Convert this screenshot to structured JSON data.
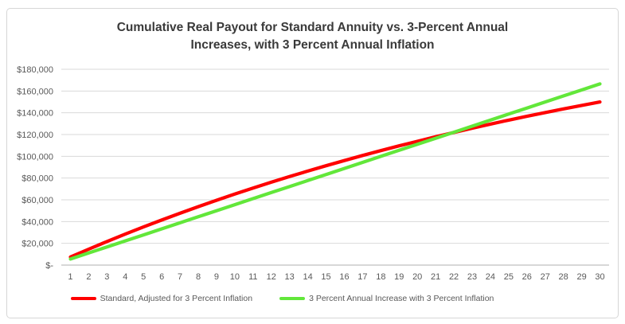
{
  "window": {
    "background": "#FFFFFF",
    "card_border_color": "#D6D6D6"
  },
  "chart_data": {
    "type": "line",
    "title": "Cumulative Real Payout for Standard Annuity vs. 3-Percent Annual Increases, with 3 Percent Annual Inflation",
    "xlabel": "",
    "ylabel": "",
    "x": [
      1,
      2,
      3,
      4,
      5,
      6,
      7,
      8,
      9,
      10,
      11,
      12,
      13,
      14,
      15,
      16,
      17,
      18,
      19,
      20,
      21,
      22,
      23,
      24,
      25,
      26,
      27,
      28,
      29,
      30
    ],
    "x_tick_labels": [
      "1",
      "2",
      "3",
      "4",
      "5",
      "6",
      "7",
      "8",
      "9",
      "10",
      "11",
      "12",
      "13",
      "14",
      "15",
      "16",
      "17",
      "18",
      "19",
      "20",
      "21",
      "22",
      "23",
      "24",
      "25",
      "26",
      "27",
      "28",
      "29",
      "30"
    ],
    "y_ticks": [
      0,
      20000,
      40000,
      60000,
      80000,
      100000,
      120000,
      140000,
      160000,
      180000
    ],
    "y_tick_labels": [
      "$-",
      "$20,000",
      "$40,000",
      "$60,000",
      "$80,000",
      "$100,000",
      "$120,000",
      "$140,000",
      "$160,000",
      "$180,000"
    ],
    "ylim": [
      0,
      180000
    ],
    "grid": true,
    "legend_position": "bottom",
    "series": [
      {
        "name": "Standard, Adjusted for 3 Percent Inflation",
        "color": "#FF0000",
        "values": [
          7427,
          14638,
          21639,
          28436,
          35035,
          41442,
          47662,
          53701,
          59564,
          65256,
          70783,
          76148,
          81357,
          86415,
          91325,
          96092,
          100721,
          105214,
          109577,
          113813,
          117925,
          121917,
          125794,
          129557,
          133211,
          136758,
          140202,
          143545,
          146792,
          149943
        ]
      },
      {
        "name": "3 Percent Annual Increase with 3 Percent Inflation",
        "color": "#62E73A",
        "values": [
          5552,
          11104,
          16656,
          22208,
          27760,
          33312,
          38864,
          44416,
          49968,
          55520,
          61072,
          66624,
          72176,
          77728,
          83280,
          88832,
          94384,
          99936,
          105488,
          111040,
          116592,
          122144,
          127696,
          133248,
          138800,
          144352,
          149904,
          155456,
          161008,
          166560
        ]
      }
    ],
    "styles": {
      "grid_color": "#D9D9D9",
      "axis_color": "#BFBFBF",
      "tick_text_color": "#595959",
      "title_text_color": "#3A3A3A"
    }
  }
}
